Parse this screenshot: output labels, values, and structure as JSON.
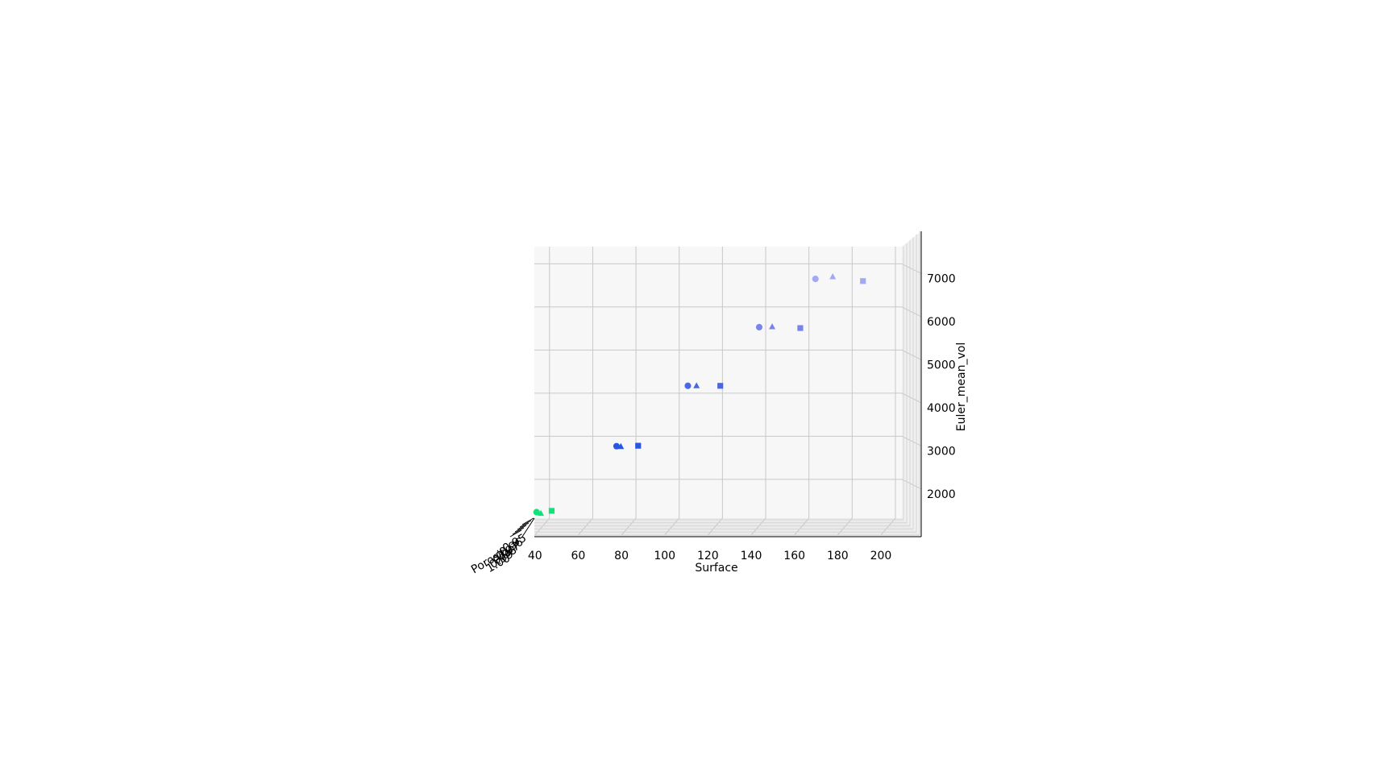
{
  "chart_data": {
    "type": "scatter",
    "projection": "3d",
    "xlabel": "Surface",
    "ylabel": "Porosity",
    "zlabel": "Euler_mean_vol",
    "x_ticks": [
      "40",
      "60",
      "80",
      "100",
      "120",
      "140",
      "160",
      "180",
      "200"
    ],
    "z_ticks": [
      "2000",
      "3000",
      "4000",
      "5000",
      "6000",
      "7000"
    ],
    "y_ticks": [
      "0.95",
      "0.96",
      "0.97",
      "0.98",
      "0.99",
      "1.00"
    ],
    "xlim": [
      33,
      203
    ],
    "zlim": [
      1100,
      7400
    ],
    "grid": true,
    "points": [
      {
        "x": 34,
        "z": 1240,
        "marker": "circle",
        "color": "#12e07a"
      },
      {
        "x": 36,
        "z": 1210,
        "marker": "triangle",
        "color": "#12e07a"
      },
      {
        "x": 41,
        "z": 1270,
        "marker": "square",
        "color": "#12e07a"
      },
      {
        "x": 71,
        "z": 2770,
        "marker": "circle",
        "color": "#2a55e0"
      },
      {
        "x": 73,
        "z": 2760,
        "marker": "triangle",
        "color": "#2a55e0"
      },
      {
        "x": 81,
        "z": 2780,
        "marker": "square",
        "color": "#2a55e0"
      },
      {
        "x": 104,
        "z": 4170,
        "marker": "circle",
        "color": "#4a66e6"
      },
      {
        "x": 108,
        "z": 4170,
        "marker": "triangle",
        "color": "#4a66e6"
      },
      {
        "x": 119,
        "z": 4170,
        "marker": "square",
        "color": "#4a66e6"
      },
      {
        "x": 137,
        "z": 5530,
        "marker": "circle",
        "color": "#7884ee"
      },
      {
        "x": 143,
        "z": 5540,
        "marker": "triangle",
        "color": "#7884ee"
      },
      {
        "x": 156,
        "z": 5510,
        "marker": "square",
        "color": "#7884ee"
      },
      {
        "x": 163,
        "z": 6650,
        "marker": "circle",
        "color": "#a2a8f2"
      },
      {
        "x": 171,
        "z": 6700,
        "marker": "triangle",
        "color": "#a2a8f2"
      },
      {
        "x": 185,
        "z": 6600,
        "marker": "square",
        "color": "#a2a8f2"
      }
    ]
  }
}
